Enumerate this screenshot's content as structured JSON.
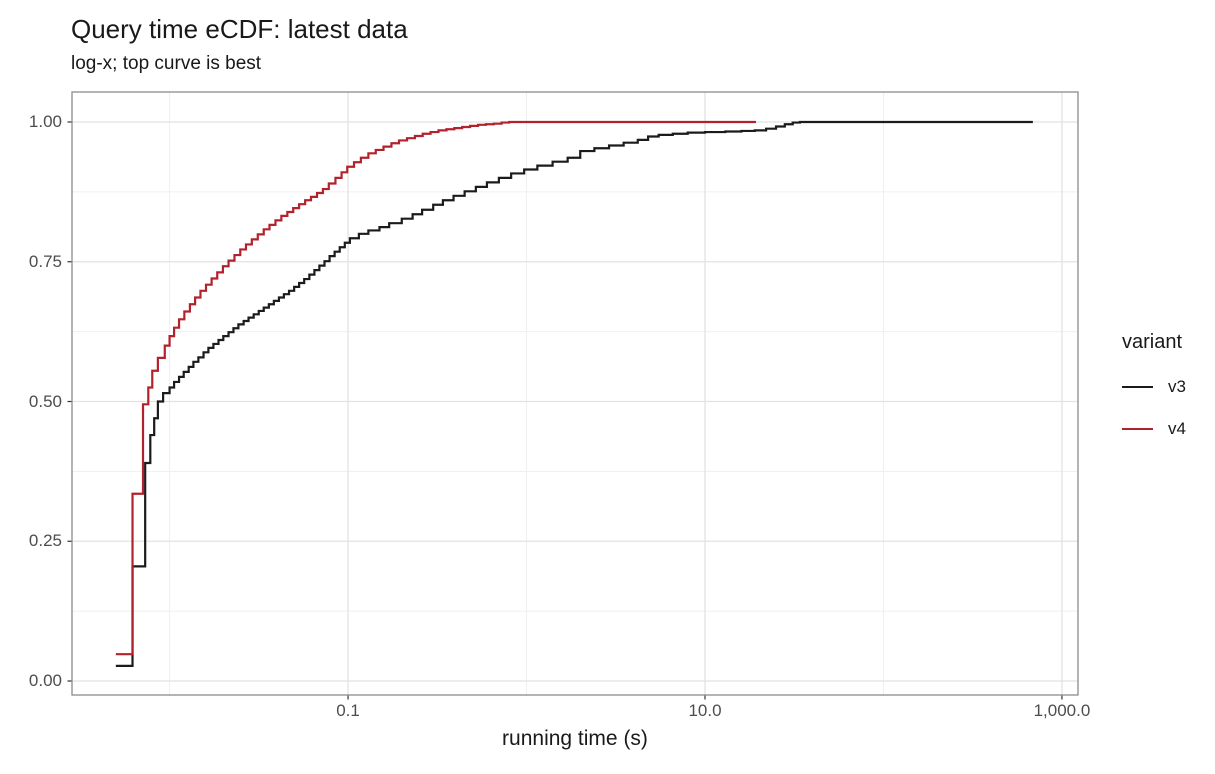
{
  "chart": {
    "title": "Query time eCDF: latest data",
    "subtitle": "log-x; top curve is best",
    "xlabel": "running time (s)",
    "legend_title": "variant"
  },
  "chart_data": {
    "type": "line",
    "subtype": "ecdf-step",
    "title": "Query time eCDF: latest data",
    "subtitle": "log-x; top curve is best",
    "xlabel": "running time (s)",
    "ylabel": "",
    "x_scale": "log10",
    "xlim": [
      0.00284,
      1230
    ],
    "ylim": [
      0,
      1
    ],
    "grid": true,
    "legend_position": "right",
    "legend_title": "variant",
    "x_major_breaks": [
      0.1,
      10,
      1000
    ],
    "x_major_labels": [
      "0.1",
      "10.0",
      "1,000.0"
    ],
    "x_minor_breaks": [
      0.01,
      1,
      100
    ],
    "y_major_breaks": [
      0,
      0.25,
      0.5,
      0.75,
      1
    ],
    "y_major_labels": [
      "0.00",
      "0.25",
      "0.50",
      "0.75",
      "1.00"
    ],
    "y_minor_breaks": [
      0.125,
      0.375,
      0.625,
      0.875
    ],
    "panel": {
      "border_color": "#8c8c8c",
      "bg": "#ffffff",
      "grid_major_color": "#e2e2e2",
      "grid_minor_color": "#efefef",
      "tick_color": "#333333"
    },
    "series": [
      {
        "name": "v3",
        "color": "#1b1b1b",
        "points": [
          [
            0.005,
            0.027
          ],
          [
            0.0062,
            0.205
          ],
          [
            0.0073,
            0.39
          ],
          [
            0.0078,
            0.44
          ],
          [
            0.0082,
            0.47
          ],
          [
            0.0086,
            0.5
          ],
          [
            0.0092,
            0.515
          ],
          [
            0.01,
            0.525
          ],
          [
            0.0106,
            0.535
          ],
          [
            0.0113,
            0.544
          ],
          [
            0.012,
            0.553
          ],
          [
            0.0128,
            0.562
          ],
          [
            0.0136,
            0.571
          ],
          [
            0.0145,
            0.579
          ],
          [
            0.0155,
            0.588
          ],
          [
            0.0165,
            0.596
          ],
          [
            0.0176,
            0.603
          ],
          [
            0.0188,
            0.61
          ],
          [
            0.02,
            0.617
          ],
          [
            0.0214,
            0.624
          ],
          [
            0.0228,
            0.631
          ],
          [
            0.0243,
            0.638
          ],
          [
            0.026,
            0.644
          ],
          [
            0.0277,
            0.65
          ],
          [
            0.0296,
            0.656
          ],
          [
            0.0316,
            0.662
          ],
          [
            0.0337,
            0.668
          ],
          [
            0.036,
            0.674
          ],
          [
            0.0384,
            0.68
          ],
          [
            0.041,
            0.686
          ],
          [
            0.0437,
            0.692
          ],
          [
            0.0467,
            0.698
          ],
          [
            0.0499,
            0.705
          ],
          [
            0.0532,
            0.712
          ],
          [
            0.0568,
            0.719
          ],
          [
            0.0607,
            0.727
          ],
          [
            0.0648,
            0.735
          ],
          [
            0.0691,
            0.743
          ],
          [
            0.0738,
            0.751
          ],
          [
            0.0788,
            0.76
          ],
          [
            0.0841,
            0.768
          ],
          [
            0.0898,
            0.776
          ],
          [
            0.0959,
            0.784
          ],
          [
            0.1024,
            0.792
          ],
          [
            0.115,
            0.8
          ],
          [
            0.13,
            0.806
          ],
          [
            0.15,
            0.812
          ],
          [
            0.17,
            0.819
          ],
          [
            0.2,
            0.827
          ],
          [
            0.23,
            0.835
          ],
          [
            0.26,
            0.843
          ],
          [
            0.3,
            0.852
          ],
          [
            0.34,
            0.86
          ],
          [
            0.39,
            0.868
          ],
          [
            0.45,
            0.876
          ],
          [
            0.52,
            0.884
          ],
          [
            0.6,
            0.892
          ],
          [
            0.7,
            0.9
          ],
          [
            0.82,
            0.908
          ],
          [
            0.97,
            0.915
          ],
          [
            1.15,
            0.922
          ],
          [
            1.4,
            0.929
          ],
          [
            1.7,
            0.936
          ],
          [
            2.0,
            0.948
          ],
          [
            2.4,
            0.953
          ],
          [
            2.9,
            0.958
          ],
          [
            3.5,
            0.963
          ],
          [
            4.2,
            0.968
          ],
          [
            4.8,
            0.974
          ],
          [
            5.5,
            0.977
          ],
          [
            6.6,
            0.979
          ],
          [
            8.0,
            0.981
          ],
          [
            10.0,
            0.982
          ],
          [
            13,
            0.983
          ],
          [
            16,
            0.984
          ],
          [
            19,
            0.985
          ],
          [
            22,
            0.988
          ],
          [
            25,
            0.992
          ],
          [
            28,
            0.996
          ],
          [
            31,
            0.999
          ],
          [
            34,
            1.0
          ],
          [
            687,
            1.0
          ]
        ]
      },
      {
        "name": "v4",
        "color": "#b2222c",
        "points": [
          [
            0.005,
            0.048
          ],
          [
            0.0062,
            0.335
          ],
          [
            0.0071,
            0.495
          ],
          [
            0.0076,
            0.525
          ],
          [
            0.008,
            0.555
          ],
          [
            0.0086,
            0.578
          ],
          [
            0.0094,
            0.6
          ],
          [
            0.01,
            0.617
          ],
          [
            0.0106,
            0.632
          ],
          [
            0.0113,
            0.647
          ],
          [
            0.0121,
            0.661
          ],
          [
            0.013,
            0.674
          ],
          [
            0.0139,
            0.686
          ],
          [
            0.0149,
            0.698
          ],
          [
            0.016,
            0.709
          ],
          [
            0.0172,
            0.72
          ],
          [
            0.0185,
            0.731
          ],
          [
            0.0199,
            0.742
          ],
          [
            0.0214,
            0.752
          ],
          [
            0.0231,
            0.762
          ],
          [
            0.0249,
            0.772
          ],
          [
            0.0268,
            0.781
          ],
          [
            0.0289,
            0.79
          ],
          [
            0.0312,
            0.799
          ],
          [
            0.0337,
            0.808
          ],
          [
            0.0363,
            0.816
          ],
          [
            0.0392,
            0.824
          ],
          [
            0.0423,
            0.832
          ],
          [
            0.0457,
            0.839
          ],
          [
            0.0493,
            0.846
          ],
          [
            0.0532,
            0.853
          ],
          [
            0.0575,
            0.86
          ],
          [
            0.062,
            0.866
          ],
          [
            0.067,
            0.873
          ],
          [
            0.0723,
            0.88
          ],
          [
            0.078,
            0.89
          ],
          [
            0.085,
            0.9
          ],
          [
            0.092,
            0.91
          ],
          [
            0.099,
            0.92
          ],
          [
            0.108,
            0.928
          ],
          [
            0.118,
            0.936
          ],
          [
            0.13,
            0.944
          ],
          [
            0.143,
            0.95
          ],
          [
            0.158,
            0.956
          ],
          [
            0.175,
            0.962
          ],
          [
            0.193,
            0.967
          ],
          [
            0.214,
            0.971
          ],
          [
            0.237,
            0.975
          ],
          [
            0.262,
            0.979
          ],
          [
            0.29,
            0.982
          ],
          [
            0.321,
            0.985
          ],
          [
            0.356,
            0.987
          ],
          [
            0.394,
            0.989
          ],
          [
            0.436,
            0.991
          ],
          [
            0.483,
            0.993
          ],
          [
            0.535,
            0.995
          ],
          [
            0.592,
            0.996
          ],
          [
            0.655,
            0.997
          ],
          [
            0.725,
            0.999
          ],
          [
            0.8,
            1.0
          ],
          [
            19.3,
            1.0
          ]
        ]
      }
    ]
  }
}
